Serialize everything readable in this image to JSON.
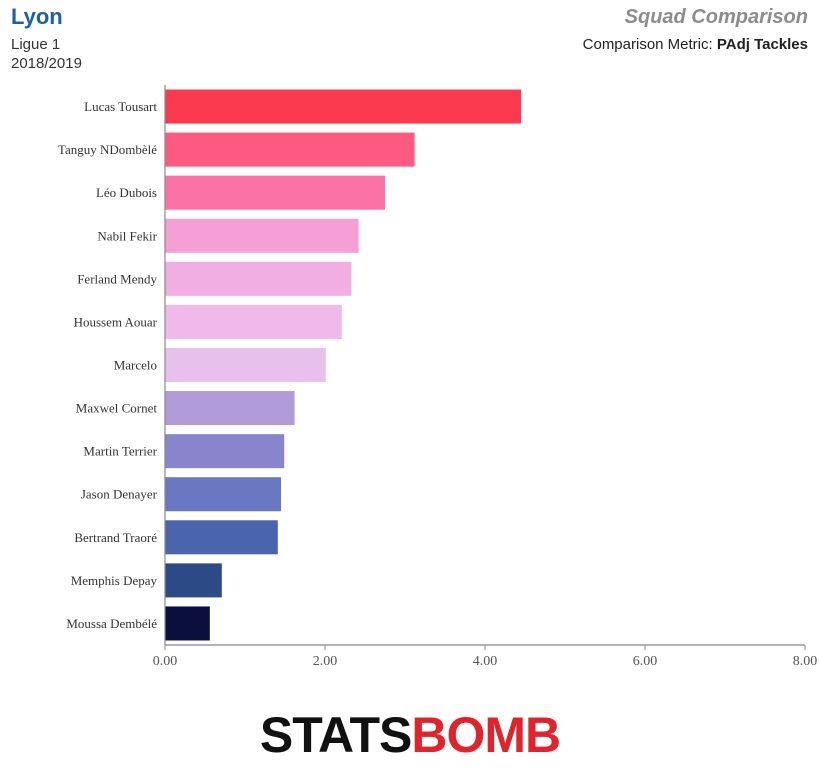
{
  "header": {
    "team": "Lyon",
    "league": "Ligue 1",
    "season": "2018/2019",
    "chart_title": "Squad Comparison",
    "metric_prefix": "Comparison Metric: ",
    "metric_name": "PAdj Tackles"
  },
  "logo": {
    "part1": "STATS",
    "part2": "BOMB"
  },
  "chart_data": {
    "type": "bar",
    "orientation": "horizontal",
    "title": "Squad Comparison",
    "xlabel": "",
    "ylabel": "",
    "xlim": [
      0,
      8
    ],
    "x_ticks": [
      "0.00",
      "2.00",
      "4.00",
      "6.00",
      "8.00"
    ],
    "categories": [
      "Lucas Tousart",
      "Tanguy NDombèlé",
      "Léo Dubois",
      "Nabil Fekir",
      "Ferland Mendy",
      "Houssem Aouar",
      "Marcelo",
      "Maxwel Cornet",
      "Martin Terrier",
      "Jason Denayer",
      "Bertrand Traoré",
      "Memphis Depay",
      "Moussa Dembélé"
    ],
    "values": [
      4.45,
      3.12,
      2.75,
      2.42,
      2.33,
      2.21,
      2.01,
      1.62,
      1.49,
      1.45,
      1.41,
      0.71,
      0.56
    ],
    "colors": [
      "#fb3a50",
      "#fd5a82",
      "#fb72a4",
      "#f4a0d4",
      "#f1aee3",
      "#efb9eb",
      "#e8c0ec",
      "#b09bd8",
      "#8985cc",
      "#6a78c2",
      "#4a64ad",
      "#2c4b86",
      "#0b0f3e"
    ],
    "grid": false,
    "legend": "none"
  }
}
